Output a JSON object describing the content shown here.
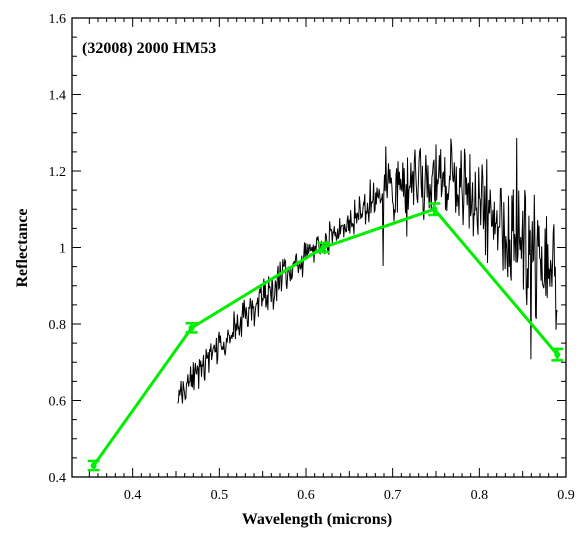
{
  "chart_data": {
    "type": "line",
    "annotation": "(32008) 2000 HM53",
    "xlabel": "Wavelength (microns)",
    "ylabel": "Reflectance",
    "xlim": [
      0.33,
      0.9
    ],
    "ylim": [
      0.4,
      1.6
    ],
    "xticks": [
      0.4,
      0.5,
      0.6,
      0.7,
      0.8,
      0.9
    ],
    "xtick_labels": [
      "0.4",
      "0.5",
      "0.6",
      "0.7",
      "0.8",
      "0.9"
    ],
    "yticks": [
      0.4,
      0.6,
      0.8,
      1.0,
      1.2,
      1.4,
      1.6
    ],
    "ytick_labels": [
      "0.4",
      "0.6",
      "0.8",
      "1",
      "1.2",
      "1.4",
      "1.6"
    ],
    "grid": false,
    "series": [
      {
        "kind": "spectrum",
        "color": "#000000",
        "x_range": [
          0.452,
          0.89
        ],
        "y_trend": [
          [
            0.452,
            0.62
          ],
          [
            0.47,
            0.66
          ],
          [
            0.5,
            0.74
          ],
          [
            0.55,
            0.87
          ],
          [
            0.6,
            0.98
          ],
          [
            0.65,
            1.07
          ],
          [
            0.7,
            1.15
          ],
          [
            0.75,
            1.18
          ],
          [
            0.8,
            1.12
          ],
          [
            0.85,
            1.0
          ],
          [
            0.89,
            0.92
          ]
        ]
      },
      {
        "kind": "photometry",
        "color": "#00ee00",
        "x": [
          0.355,
          0.468,
          0.62,
          0.748,
          0.89
        ],
        "y": [
          0.43,
          0.79,
          1.0,
          1.1,
          0.72
        ],
        "yerr": [
          0.012,
          0.012,
          0.012,
          0.015,
          0.015
        ]
      }
    ]
  }
}
